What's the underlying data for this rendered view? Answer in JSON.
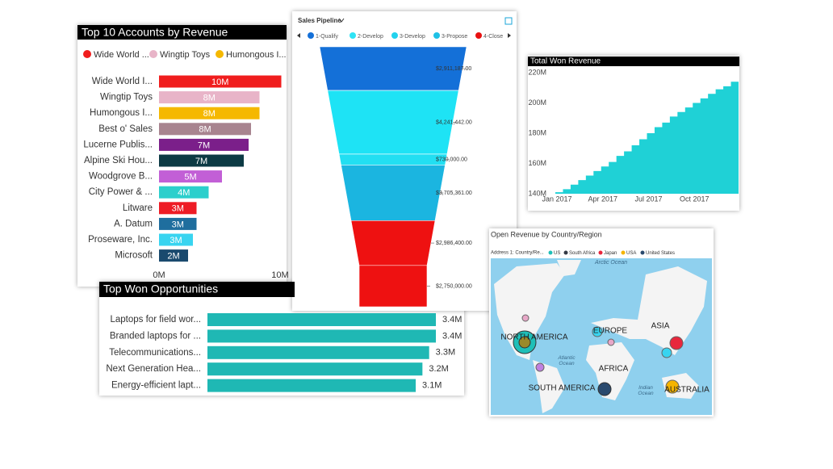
{
  "chart_data": [
    {
      "type": "hbar",
      "title": "Top 10 Accounts by Revenue",
      "legend": [
        {
          "name": "Wide World ...",
          "color": "#f01d1d"
        },
        {
          "name": "Wingtip Toys",
          "color": "#e8b4c8"
        },
        {
          "name": "Humongous I...",
          "color": "#f5b800"
        }
      ],
      "categories": [
        "Wide World I...",
        "Wingtip Toys",
        "Humongous I...",
        "Best o' Sales",
        "Lucerne Publis...",
        "Alpine Ski Hou...",
        "Woodgrove B...",
        "City Power & ...",
        "Litware",
        "A. Datum",
        "Proseware, Inc.",
        "Microsoft"
      ],
      "values": [
        10.1,
        8.3,
        8.3,
        7.6,
        7.4,
        7.0,
        5.2,
        4.1,
        3.1,
        3.1,
        2.8,
        2.4
      ],
      "value_labels": [
        "10M",
        "8M",
        "8M",
        "8M",
        "7M",
        "7M",
        "5M",
        "4M",
        "3M",
        "3M",
        "3M",
        "2M"
      ],
      "colors": [
        "#f01d1d",
        "#e8b4c8",
        "#f5b800",
        "#a8848f",
        "#7b1f8a",
        "#0c3a44",
        "#c25fd6",
        "#2ccfcc",
        "#ee1c25",
        "#1f6e9e",
        "#38d4f0",
        "#1a4a6e"
      ],
      "xlim": [
        0,
        10
      ],
      "xticks": [
        {
          "value": 0,
          "label": "0M"
        },
        {
          "value": 10,
          "label": "10M"
        }
      ]
    },
    {
      "type": "funnel",
      "title": "Sales Pipeline",
      "legend": [
        {
          "name": "1-Qualify",
          "color": "#1470d8"
        },
        {
          "name": "2-Develop",
          "color": "#2ee3f5"
        },
        {
          "name": "3-Develop",
          "color": "#22d2ee"
        },
        {
          "name": "3-Propose",
          "color": "#1ec1e6"
        },
        {
          "name": "4-Close",
          "color": "#e81111"
        }
      ],
      "values": [
        2911187,
        4241442,
        730000,
        3705361,
        2986400,
        2750000
      ],
      "value_labels": [
        "$2,911,187.00",
        "$4,241,442.00",
        "$730,000.00",
        "$3,705,361.00",
        "$2,986,400.00",
        "$2,750,000.00"
      ],
      "colors": [
        "#1470d8",
        "#1ee3f5",
        "#22dff2",
        "#1bb5e0",
        "#ee1111",
        "#ee1111"
      ]
    },
    {
      "type": "area",
      "title": "Total Won Revenue",
      "categories": [
        "Jan 2017",
        null,
        null,
        null,
        null,
        null,
        "Apr 2017",
        null,
        null,
        null,
        null,
        null,
        "Jul 2017",
        null,
        null,
        null,
        null,
        null,
        "Oct 2017",
        null,
        null,
        null,
        null,
        null
      ],
      "values": [
        141,
        143,
        146,
        149,
        152,
        155,
        158,
        161,
        165,
        168,
        172,
        176,
        180,
        184,
        187,
        191,
        194,
        197,
        200,
        203,
        206,
        209,
        211,
        214
      ],
      "color": "#1fd1d6",
      "ylim": [
        140,
        220
      ],
      "yticks": [
        {
          "value": 140,
          "label": "140M"
        },
        {
          "value": 160,
          "label": "160M"
        },
        {
          "value": 180,
          "label": "180M"
        },
        {
          "value": 200,
          "label": "200M"
        },
        {
          "value": 220,
          "label": "220M"
        }
      ]
    },
    {
      "type": "hbar",
      "title": "Top Won Opportunities",
      "categories": [
        "Laptops for field wor...",
        "Branded laptops for ...",
        "Telecommunications...",
        "Next Generation Hea...",
        "Energy-efficient lapt..."
      ],
      "values": [
        3.4,
        3.4,
        3.3,
        3.2,
        3.1
      ],
      "value_labels": [
        "3.4M",
        "3.4M",
        "3.3M",
        "3.2M",
        "3.1M"
      ],
      "color": "#1fb8b4"
    },
    {
      "type": "map",
      "title": "Open Revenue by Country/Region",
      "legend_title": "Address 1: Country/Re...",
      "legend": [
        {
          "name": "US",
          "color": "#1fbfb8"
        },
        {
          "name": "South Africa",
          "color": "#333a45"
        },
        {
          "name": "Japan",
          "color": "#e8273c"
        },
        {
          "name": "USA",
          "color": "#f5b400"
        },
        {
          "name": "United States",
          "color": "#2a4a6e"
        }
      ],
      "labels": [
        "Arctic Ocean",
        "NORTH AMERICA",
        "EUROPE",
        "ASIA",
        "AFRICA",
        "SOUTH AMERICA",
        "AUSTRALIA",
        "Atlantic Ocean",
        "Indian Ocean"
      ]
    }
  ]
}
